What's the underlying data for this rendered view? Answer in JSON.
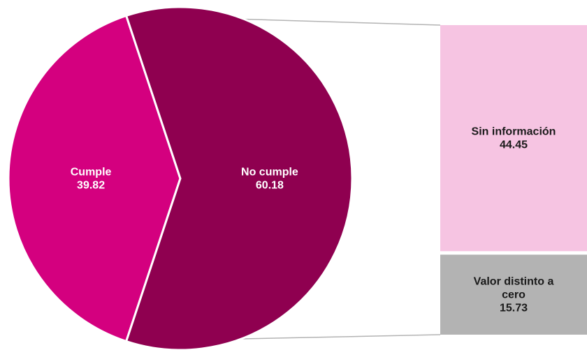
{
  "chart_data": {
    "type": "pie",
    "subtype": "pie-of-bar",
    "title": "",
    "slices": [
      {
        "label": "Cumple",
        "value": 39.82,
        "color": "#d4007f",
        "label_color": "#ffffff"
      },
      {
        "label": "No cumple",
        "value": 60.18,
        "color": "#8f0050",
        "label_color": "#ffffff"
      }
    ],
    "breakdown_of": "No cumple",
    "stacked_bar": [
      {
        "label": "Sin información",
        "value": 44.45,
        "color": "#f6c4e2",
        "label_color": "#1a1a1a"
      },
      {
        "label": "Valor distinto a cero",
        "value": 15.73,
        "color": "#b3b3b3",
        "label_color": "#1a1a1a"
      }
    ],
    "connector_color": "#b3b3b3"
  }
}
